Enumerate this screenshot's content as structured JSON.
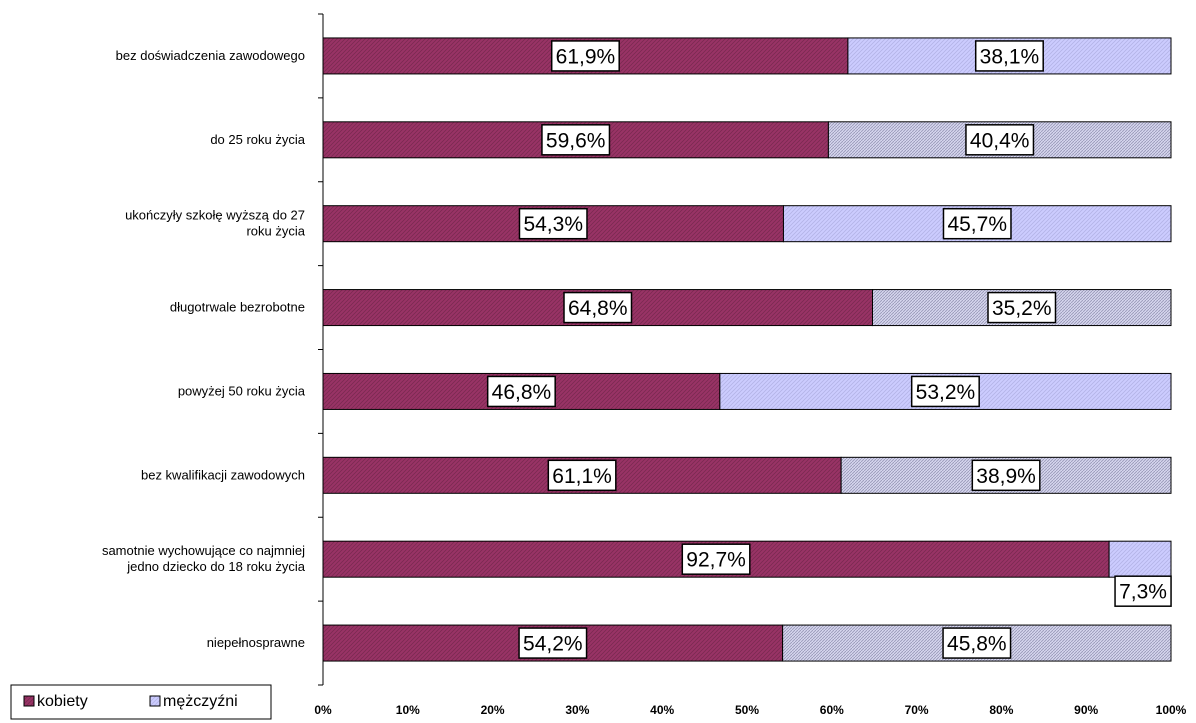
{
  "chart_data": {
    "type": "bar",
    "orientation": "horizontal",
    "stacked": "percent",
    "categories": [
      "bez doświadczenia zawodowego",
      "do 25 roku życia",
      "ukończyły szkołę wyższą do 27 roku życia",
      "długotrwale bezrobotne",
      "powyżej 50 roku życia",
      "bez kwalifikacji zawodowych",
      "samotnie wychowujące  co najmniej jedno dziecko do 18 roku życia",
      "niepełnosprawne"
    ],
    "series": [
      {
        "name": "kobiety",
        "values": [
          61.9,
          59.6,
          54.3,
          64.8,
          46.8,
          61.1,
          92.7,
          54.2
        ],
        "labels": [
          "61,9%",
          "59,6%",
          "54,3%",
          "64,8%",
          "46,8%",
          "61,1%",
          "92,7%",
          "54,2%"
        ]
      },
      {
        "name": "mężczyźni",
        "values": [
          38.1,
          40.4,
          45.7,
          35.2,
          53.2,
          38.9,
          7.3,
          45.8
        ],
        "labels": [
          "38,1%",
          "40,4%",
          "45,7%",
          "35,2%",
          "53,2%",
          "38,9%",
          "7,3%",
          "45,8%"
        ]
      }
    ],
    "xlim": [
      0,
      100
    ],
    "x_ticks": [
      "0%",
      "10%",
      "20%",
      "30%",
      "40%",
      "50%",
      "60%",
      "70%",
      "80%",
      "90%",
      "100%"
    ],
    "legend": {
      "placement": "bottom-left",
      "items": [
        "kobiety",
        "mężczyźni"
      ]
    },
    "grid": false,
    "colors": {
      "kobiety": "#993366",
      "mezczyzni": "#ccccff"
    }
  }
}
